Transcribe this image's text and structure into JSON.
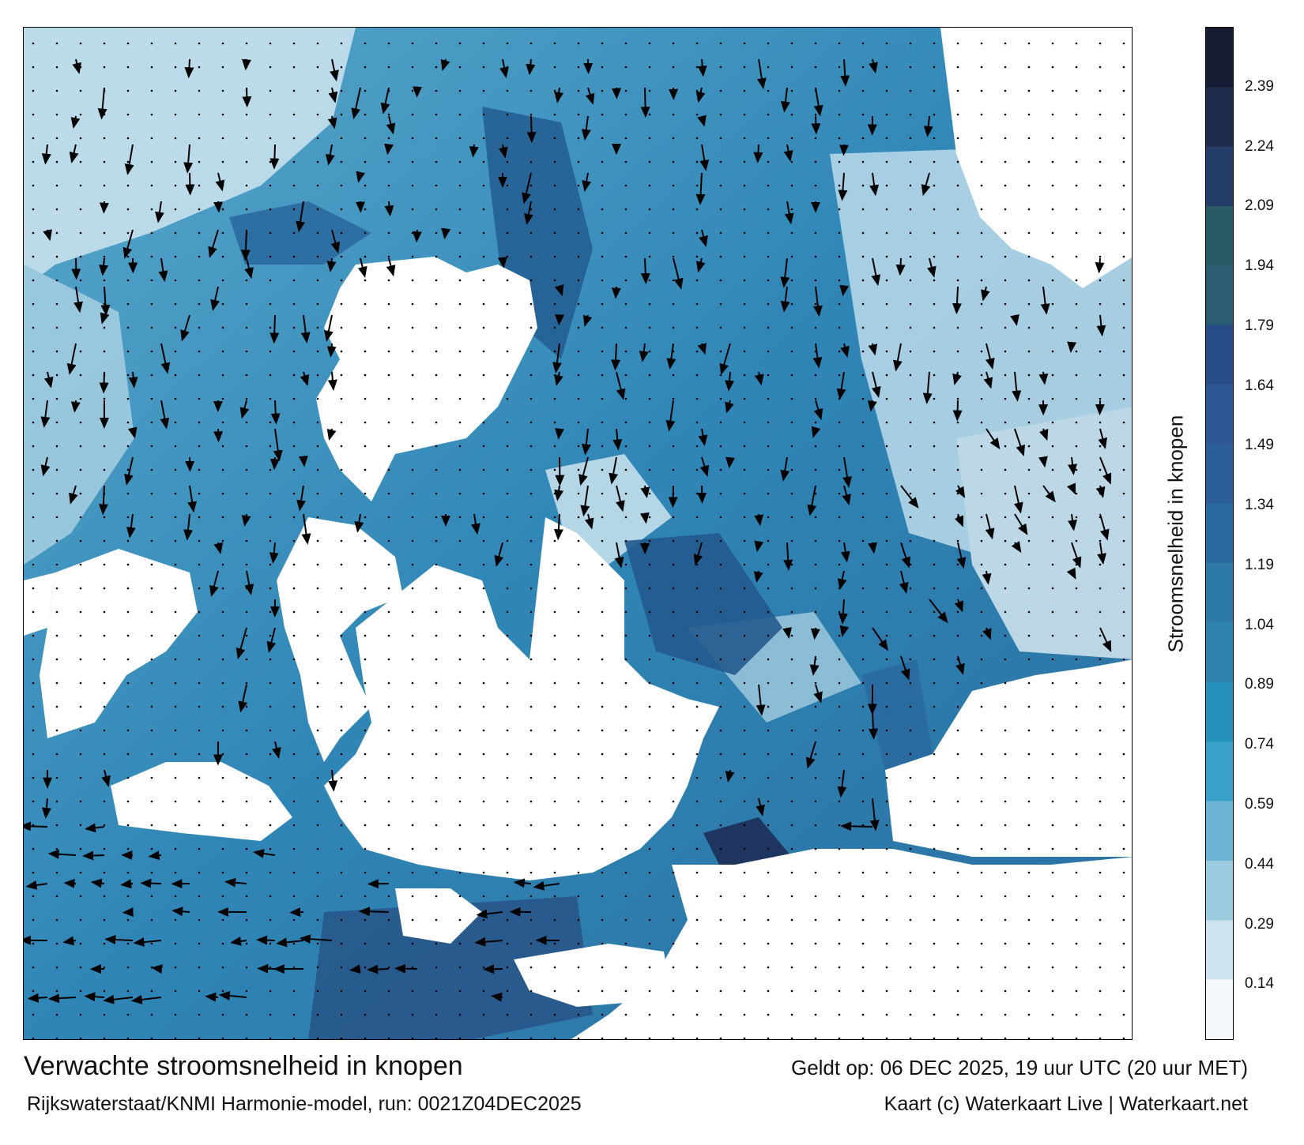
{
  "map": {
    "title": "Verwachte stroomsnelheid in knopen",
    "subtitle": "Rijkswaterstaat/KNMI Harmonie-model, run: 0021Z04DEC2025",
    "valid_time": "Geldt op: 06 DEC 2025, 19 uur UTC (20 uur MET)",
    "credit": "Kaart (c) Waterkaart Live | Waterkaart.net",
    "land_color": "#ffffff",
    "sea_colors": [
      "#e8f1f6",
      "#b2d3e4",
      "#74b2cf",
      "#3690bd",
      "#2a74a0",
      "#23588a"
    ]
  },
  "colorbar": {
    "label": "Stroomsnelheid in knopen",
    "ticks": [
      "2.39",
      "2.24",
      "2.09",
      "1.94",
      "1.79",
      "1.64",
      "1.49",
      "1.34",
      "1.19",
      "1.04",
      "0.89",
      "0.74",
      "0.59",
      "0.44",
      "0.29",
      "0.14"
    ],
    "min": 0,
    "max": 2.54,
    "colors": [
      "#f4f8fb",
      "#cfe3ee",
      "#9ccbe0",
      "#6cb2d3",
      "#3aa0c9",
      "#2491bd",
      "#2e84ac",
      "#2e7aa6",
      "#2b6aa0",
      "#2c5e9b",
      "#2e5595",
      "#284d86",
      "#2a5d74",
      "#2a5a66",
      "#243d66",
      "#1e2a4a",
      "#151c33"
    ]
  }
}
